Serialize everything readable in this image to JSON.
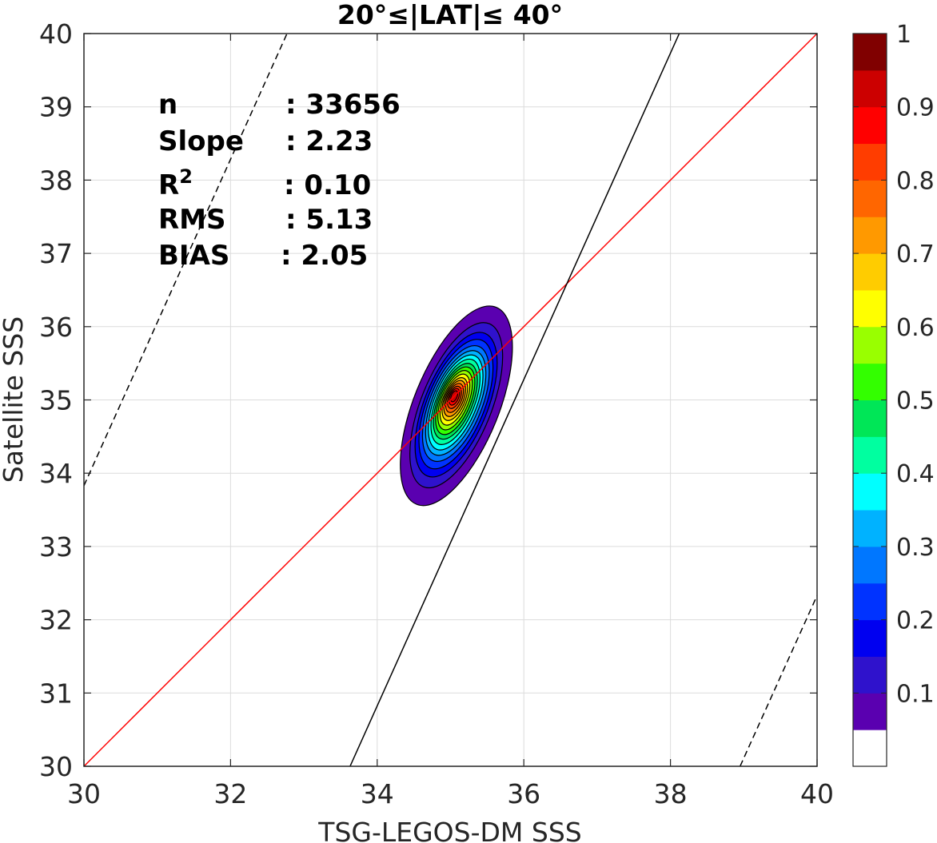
{
  "chart_data": {
    "type": "contour",
    "title": "20°≤|LAT|≤ 40°",
    "xlabel": "TSG-LEGOS-DM SSS",
    "ylabel": "Satellite SSS",
    "xlim": [
      30,
      40
    ],
    "ylim": [
      30,
      40
    ],
    "xticks": [
      "30",
      "32",
      "34",
      "36",
      "38",
      "40"
    ],
    "yticks": [
      "30",
      "31",
      "32",
      "33",
      "34",
      "35",
      "36",
      "37",
      "38",
      "39",
      "40"
    ],
    "grid": true,
    "stats": [
      {
        "label": "n",
        "value": ": 33656"
      },
      {
        "label": "Slope",
        "value": ": 2.23"
      },
      {
        "label": "R",
        "sup": "2",
        "value": ": 0.10"
      },
      {
        "label": "RMS",
        "value": ": 5.13"
      },
      {
        "label": "BIAS",
        "value": ": 2.05"
      }
    ],
    "lines": [
      {
        "role": "one-to-one",
        "color": "#ff0000",
        "style": "solid",
        "x": [
          30,
          40
        ],
        "y": [
          30,
          40
        ]
      },
      {
        "role": "regression",
        "color": "#000000",
        "style": "solid",
        "x": [
          33.63,
          38.12
        ],
        "y": [
          30,
          40
        ]
      },
      {
        "role": "regression-upper-bound",
        "color": "#000000",
        "style": "dashed",
        "x": [
          30,
          32.77
        ],
        "y": [
          33.83,
          40
        ]
      },
      {
        "role": "regression-lower-bound",
        "color": "#000000",
        "style": "dashed",
        "x": [
          38.95,
          40
        ],
        "y": [
          30,
          32.33
        ]
      }
    ],
    "density_peak": {
      "x": 35.05,
      "y": 35.05,
      "cx": 35.08,
      "cy": 34.92
    },
    "density_contours": [
      {
        "level": 0.05,
        "sx": 0.58,
        "sy": 1.45
      },
      {
        "level": 0.1,
        "sx": 0.48,
        "sy": 1.2
      },
      {
        "level": 0.15,
        "sx": 0.43,
        "sy": 1.05
      },
      {
        "level": 0.2,
        "sx": 0.39,
        "sy": 0.94
      },
      {
        "level": 0.25,
        "sx": 0.355,
        "sy": 0.84
      },
      {
        "level": 0.3,
        "sx": 0.32,
        "sy": 0.76
      },
      {
        "level": 0.35,
        "sx": 0.29,
        "sy": 0.69
      },
      {
        "level": 0.4,
        "sx": 0.26,
        "sy": 0.62
      },
      {
        "level": 0.45,
        "sx": 0.235,
        "sy": 0.55
      },
      {
        "level": 0.5,
        "sx": 0.21,
        "sy": 0.49
      },
      {
        "level": 0.55,
        "sx": 0.185,
        "sy": 0.43
      },
      {
        "level": 0.6,
        "sx": 0.16,
        "sy": 0.37
      },
      {
        "level": 0.65,
        "sx": 0.14,
        "sy": 0.31
      },
      {
        "level": 0.7,
        "sx": 0.12,
        "sy": 0.26
      },
      {
        "level": 0.75,
        "sx": 0.1,
        "sy": 0.21
      },
      {
        "level": 0.8,
        "sx": 0.08,
        "sy": 0.16
      },
      {
        "level": 0.85,
        "sx": 0.06,
        "sy": 0.12
      },
      {
        "level": 0.9,
        "sx": 0.04,
        "sy": 0.08
      }
    ],
    "colorbar": {
      "range": [
        0,
        1
      ],
      "ticks": [
        "0.1",
        "0.2",
        "0.3",
        "0.4",
        "0.5",
        "0.6",
        "0.7",
        "0.8",
        "0.9",
        "1"
      ],
      "colors": [
        "#ffffff",
        "#5a00b0",
        "#2f12cc",
        "#0000f0",
        "#0033ff",
        "#0077ff",
        "#00b2ff",
        "#00ffff",
        "#00ffa0",
        "#00e657",
        "#33ff00",
        "#99ff00",
        "#ffff00",
        "#ffcc00",
        "#ff9900",
        "#ff6600",
        "#ff3d00",
        "#ff0000",
        "#cc0000",
        "#800000"
      ]
    }
  }
}
